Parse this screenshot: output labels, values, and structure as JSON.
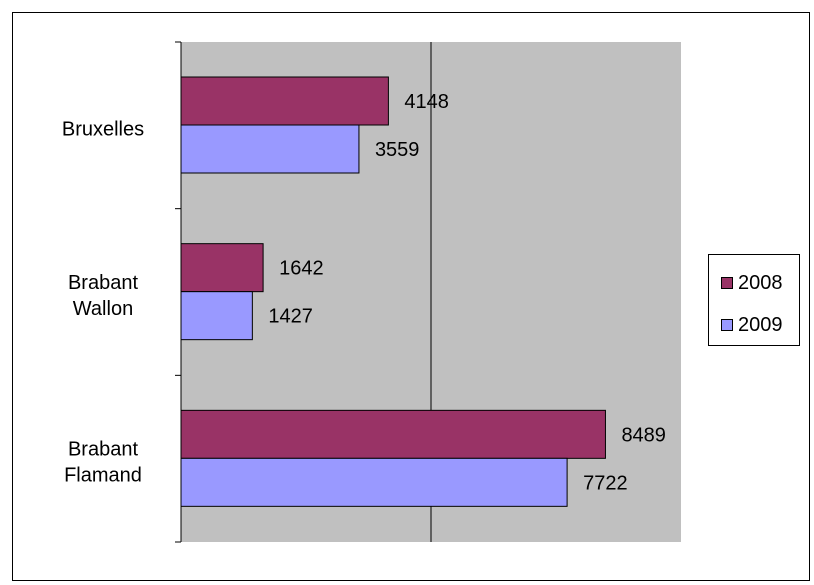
{
  "chart_data": {
    "type": "bar",
    "orientation": "horizontal",
    "categories": [
      [
        "Bruxelles"
      ],
      [
        "Brabant",
        "Wallon"
      ],
      [
        "Brabant",
        "Flamand"
      ]
    ],
    "series": [
      {
        "name": "2008",
        "values": [
          4148,
          1642,
          8489
        ],
        "color": "#993366"
      },
      {
        "name": "2009",
        "values": [
          3559,
          1427,
          7722
        ],
        "color": "#9999FF"
      }
    ],
    "xlim": [
      0,
      10000
    ],
    "gridline_values": [
      5000
    ],
    "plot_background": "#C0C0C0",
    "legend_position": "right",
    "title": "",
    "xlabel": "",
    "ylabel": ""
  }
}
